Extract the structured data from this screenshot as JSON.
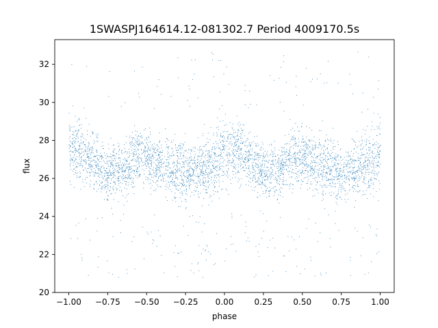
{
  "chart_data": {
    "type": "scatter",
    "title": "1SWASPJ164614.12-081302.7 Period 4009170.5s",
    "xlabel": "phase",
    "ylabel": "flux",
    "xlim": [
      -1.09,
      1.09
    ],
    "ylim": [
      20,
      33.3
    ],
    "xticks": [
      -1.0,
      -0.75,
      -0.5,
      -0.25,
      0.0,
      0.25,
      0.5,
      0.75,
      1.0
    ],
    "xtick_labels": [
      "−1.00",
      "−0.75",
      "−0.50",
      "−0.25",
      "0.00",
      "0.25",
      "0.50",
      "0.75",
      "1.00"
    ],
    "yticks": [
      20,
      22,
      24,
      26,
      28,
      30,
      32
    ],
    "ytick_labels": [
      "20",
      "22",
      "24",
      "26",
      "28",
      "30",
      "32"
    ],
    "grid": false,
    "legend": "none",
    "marker_color": "#1f77b4",
    "series_profile": {
      "phase": [
        -1.0,
        -0.95,
        -0.9,
        -0.85,
        -0.8,
        -0.75,
        -0.7,
        -0.65,
        -0.6,
        -0.55,
        -0.5,
        -0.45,
        -0.4,
        -0.35,
        -0.3,
        -0.25,
        -0.2,
        -0.15,
        -0.1,
        -0.05,
        0.0,
        0.05,
        0.1,
        0.15,
        0.2,
        0.25,
        0.3,
        0.35,
        0.4,
        0.45,
        0.5,
        0.55,
        0.6,
        0.65,
        0.7,
        0.75,
        0.8,
        0.85,
        0.9,
        0.95,
        1.0
      ],
      "flux_mean": [
        27.6,
        27.5,
        27.3,
        27.0,
        26.6,
        26.2,
        26.5,
        26.3,
        26.9,
        27.3,
        27.1,
        26.8,
        26.9,
        26.7,
        26.4,
        26.2,
        26.3,
        26.5,
        26.7,
        27.0,
        27.6,
        27.5,
        27.3,
        27.0,
        26.6,
        26.2,
        26.5,
        26.3,
        26.9,
        27.3,
        27.1,
        26.8,
        26.9,
        26.7,
        26.4,
        26.2,
        26.3,
        26.5,
        26.7,
        27.0,
        27.6
      ],
      "flux_spread": [
        1.4,
        1.2,
        1.1,
        1.0,
        1.0,
        0.9,
        1.1,
        1.0,
        1.0,
        1.1,
        1.1,
        1.0,
        1.1,
        1.2,
        1.2,
        1.1,
        1.0,
        1.1,
        1.2,
        1.3,
        1.4,
        1.2,
        1.1,
        1.0,
        1.0,
        0.9,
        1.1,
        1.0,
        1.0,
        1.1,
        1.1,
        1.0,
        1.1,
        1.2,
        1.2,
        1.1,
        1.0,
        1.1,
        1.2,
        1.3,
        1.4
      ]
    }
  }
}
